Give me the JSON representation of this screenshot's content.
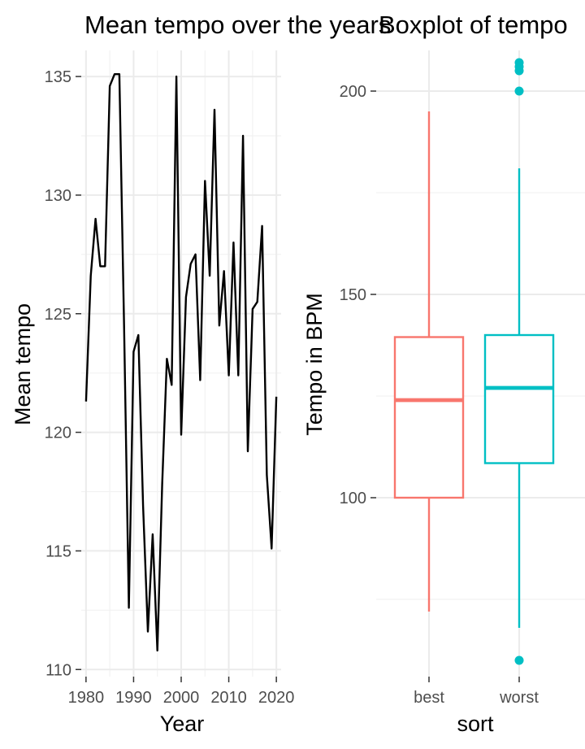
{
  "chart_data": [
    {
      "type": "line",
      "title": "Mean tempo over the years",
      "xlabel": "Year",
      "ylabel": "Mean tempo",
      "xlim": [
        1979,
        2021
      ],
      "ylim": [
        109.7,
        136.1
      ],
      "x_ticks": [
        1980,
        1990,
        2000,
        2010,
        2020
      ],
      "y_ticks": [
        110,
        115,
        120,
        125,
        130,
        135
      ],
      "grid": true,
      "line_color": "#000000",
      "series": [
        {
          "x": [
            1980,
            1981,
            1982,
            1983,
            1984,
            1985,
            1986,
            1987,
            1988,
            1989,
            1990,
            1991,
            1992,
            1993,
            1994,
            1995,
            1996,
            1997,
            1998,
            1999,
            2000,
            2001,
            2002,
            2003,
            2004,
            2005,
            2006,
            2007,
            2008,
            2009,
            2010,
            2011,
            2012,
            2013,
            2014,
            2015,
            2016,
            2017,
            2018,
            2019,
            2020
          ],
          "y": [
            121.3,
            126.6,
            129.0,
            127.0,
            127.0,
            134.6,
            135.1,
            135.1,
            124.5,
            112.6,
            123.4,
            124.1,
            116.9,
            111.6,
            115.7,
            110.8,
            117.8,
            123.1,
            122.0,
            135.0,
            119.9,
            125.7,
            127.1,
            127.5,
            122.2,
            130.6,
            126.6,
            133.6,
            124.5,
            126.8,
            122.4,
            128.0,
            122.4,
            132.5,
            119.2,
            125.2,
            125.5,
            128.7,
            118.2,
            115.1,
            121.5
          ]
        }
      ]
    },
    {
      "type": "boxplot",
      "title": "Boxplot of tempo",
      "xlabel": "sort",
      "ylabel": "Tempo in BPM",
      "ylim": [
        56,
        210
      ],
      "y_ticks": [
        100,
        150,
        200
      ],
      "grid": true,
      "categories": [
        "best",
        "worst"
      ],
      "boxes": [
        {
          "name": "best",
          "color": "#F8766D",
          "lower_whisker": 72,
          "q1": 100,
          "median": 124,
          "q3": 139.5,
          "upper_whisker": 195,
          "outliers": []
        },
        {
          "name": "worst",
          "color": "#00BFC4",
          "lower_whisker": 68,
          "q1": 108.5,
          "median": 127,
          "q3": 140,
          "upper_whisker": 181,
          "outliers": [
            60,
            200,
            205,
            206,
            207
          ]
        }
      ]
    }
  ]
}
